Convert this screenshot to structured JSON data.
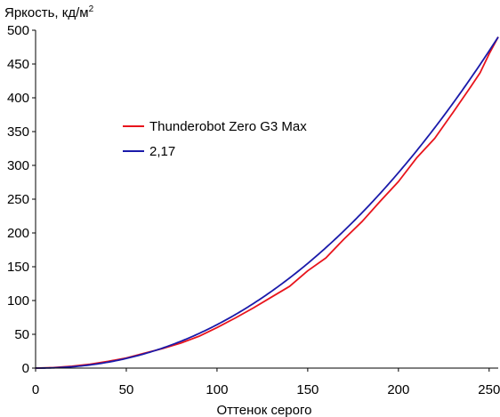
{
  "chart_data": {
    "type": "line",
    "title": "",
    "ylabel": "Яркость, кд/м",
    "ylabel_superscript": "2",
    "xlabel": "Оттенок серого",
    "xlim": [
      0,
      255
    ],
    "ylim": [
      0,
      500
    ],
    "xticks": [
      0,
      50,
      100,
      150,
      200,
      250
    ],
    "yticks": [
      0,
      50,
      100,
      150,
      200,
      250,
      300,
      350,
      400,
      450,
      500
    ],
    "grid": false,
    "legend": "upper-left, inside plot area",
    "series": [
      {
        "name": "Thunderobot Zero G3 Max",
        "color": "#e8141c",
        "x": [
          0,
          10,
          20,
          30,
          40,
          50,
          60,
          70,
          80,
          90,
          100,
          110,
          120,
          130,
          140,
          150,
          160,
          170,
          180,
          190,
          200,
          210,
          220,
          230,
          240,
          245,
          250,
          255
        ],
        "y": [
          0,
          0.8,
          2.8,
          5.8,
          10,
          15,
          22,
          29,
          37,
          47,
          60,
          74,
          89,
          105,
          121,
          144,
          163,
          191,
          217,
          247,
          276,
          311,
          340,
          378,
          417,
          437,
          465,
          490
        ]
      },
      {
        "name": "2,17",
        "color": "#1a1aaa",
        "exponent": 2.17,
        "x_max": 255,
        "y_max": 490
      }
    ]
  }
}
